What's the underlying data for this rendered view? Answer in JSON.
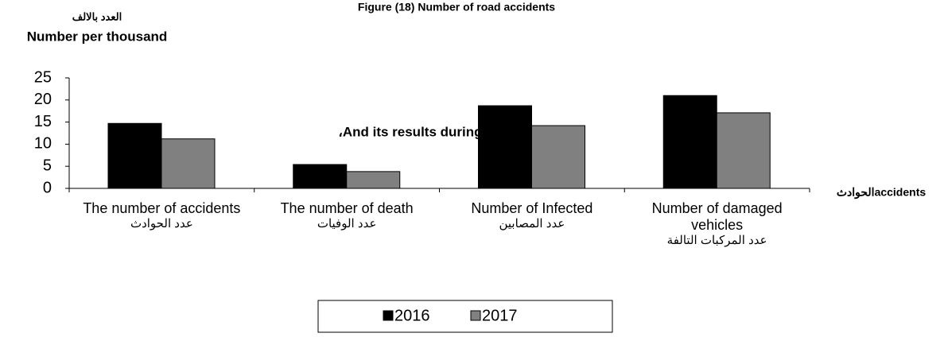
{
  "chart_data": {
    "type": "bar",
    "title": "Figure (18) Number of road accidents",
    "y_label_arabic": "العدد بالالف",
    "y_label": "Number per thousand",
    "annotation": "،And its results during the year (2016",
    "x_label": "الحوادثaccidents",
    "categories": [
      "The number of accidents",
      "The number of death",
      "Number of Infected",
      "Number of damaged vehicles"
    ],
    "categories_arabic": [
      "عدد الحوادث",
      "عدد الوفيات",
      "عدد المصابين",
      "عدد المركبات التالفة"
    ],
    "series": [
      {
        "name": "2016",
        "color": "#000000",
        "values": [
          14.7,
          5.4,
          18.7,
          21.0
        ]
      },
      {
        "name": "2017",
        "color": "#808080",
        "values": [
          11.2,
          3.8,
          14.2,
          17.1
        ]
      }
    ],
    "ylim": [
      0,
      25
    ],
    "yticks": [
      0,
      5,
      10,
      15,
      20,
      25
    ],
    "grid": false,
    "legend": "bottom"
  }
}
